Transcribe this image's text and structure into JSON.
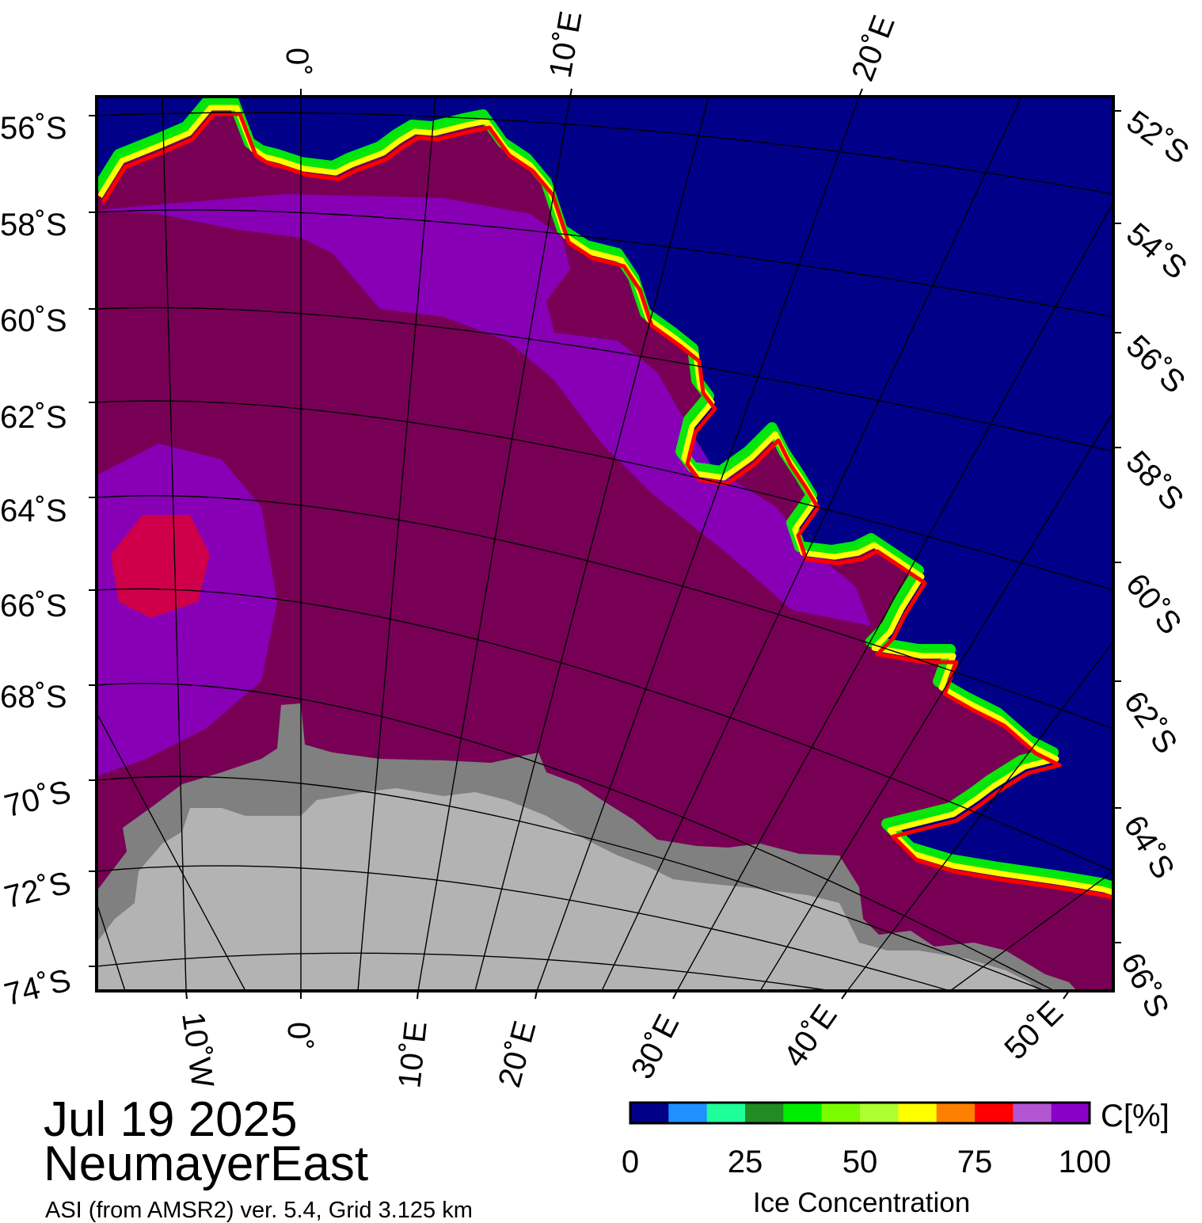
{
  "map": {
    "date": "Jul 19 2025",
    "region": "NeumayerEast",
    "source": "ASI (from AMSR2) ver. 5.4,  Grid 3.125 km",
    "colors": {
      "ocean": "#000088",
      "land": "#b3b3b3",
      "ice_shelf": "#808080",
      "ice_full": "#770055",
      "ice_high": "#8a00c8",
      "ice_lilac": "#b455d4",
      "ice_red": "#ff0000",
      "ice_yellow": "#ffff00",
      "ice_green": "#00ff00",
      "graticule": "#000000"
    },
    "left_lat_labels": [
      "56˚S",
      "58˚S",
      "60˚S",
      "62˚S",
      "64˚S",
      "66˚S",
      "68˚S",
      "70˚S",
      "72˚S",
      "74˚S"
    ],
    "right_lat_labels": [
      "52˚S",
      "54˚S",
      "56˚S",
      "58˚S",
      "60˚S",
      "62˚S",
      "64˚S",
      "66˚S"
    ],
    "top_lon_labels": [
      "0˚",
      "10˚E",
      "20˚E"
    ],
    "bottom_lon_labels": [
      "10˚W",
      "0˚",
      "10˚E",
      "20˚E",
      "30˚E",
      "40˚E",
      "50˚E"
    ]
  },
  "colorbar": {
    "unit": "C[%]",
    "title": "Ice Concentration",
    "ticks": [
      "0",
      "25",
      "50",
      "75",
      "100"
    ],
    "colors": [
      "#000088",
      "#1e90ff",
      "#1eff9a",
      "#228b22",
      "#00ee00",
      "#7cfc00",
      "#adff2f",
      "#ffff00",
      "#ff7f00",
      "#ff0000",
      "#b455d4",
      "#8a00c8"
    ]
  }
}
